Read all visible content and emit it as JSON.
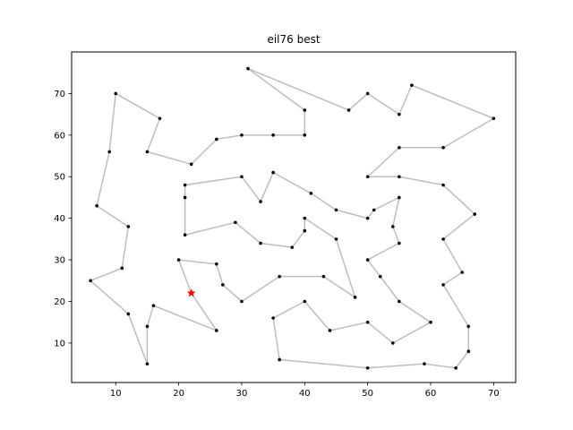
{
  "chart_data": {
    "type": "line",
    "title": "eil76 best",
    "xlabel": "",
    "ylabel": "",
    "xlim": [
      3,
      73.5
    ],
    "ylim": [
      0.5,
      80
    ],
    "xticks": [
      10,
      20,
      30,
      40,
      50,
      60,
      70
    ],
    "yticks": [
      10,
      20,
      30,
      40,
      50,
      60,
      70
    ],
    "grid": false,
    "colors": {
      "route": "#bdbdbd",
      "city": "#000000",
      "start": "#ff0000"
    },
    "start": {
      "x": 22,
      "y": 22
    },
    "route": [
      [
        22,
        22
      ],
      [
        26,
        13
      ],
      [
        16,
        19
      ],
      [
        15,
        14
      ],
      [
        15,
        5
      ],
      [
        12,
        17
      ],
      [
        6,
        25
      ],
      [
        11,
        28
      ],
      [
        12,
        38
      ],
      [
        7,
        43
      ],
      [
        9,
        56
      ],
      [
        10,
        70
      ],
      [
        17,
        64
      ],
      [
        15,
        56
      ],
      [
        22,
        53
      ],
      [
        26,
        59
      ],
      [
        30,
        60
      ],
      [
        35,
        60
      ],
      [
        40,
        60
      ],
      [
        40,
        66
      ],
      [
        31,
        76
      ],
      [
        47,
        66
      ],
      [
        50,
        70
      ],
      [
        55,
        65
      ],
      [
        57,
        72
      ],
      [
        70,
        64
      ],
      [
        62,
        57
      ],
      [
        55,
        57
      ],
      [
        50,
        50
      ],
      [
        55,
        50
      ],
      [
        62,
        48
      ],
      [
        67,
        41
      ],
      [
        62,
        35
      ],
      [
        65,
        27
      ],
      [
        62,
        24
      ],
      [
        66,
        14
      ],
      [
        66,
        8
      ],
      [
        64,
        4
      ],
      [
        59,
        5
      ],
      [
        50,
        4
      ],
      [
        36,
        6
      ],
      [
        35,
        16
      ],
      [
        40,
        20
      ],
      [
        44,
        13
      ],
      [
        50,
        15
      ],
      [
        54,
        10
      ],
      [
        60,
        15
      ],
      [
        55,
        20
      ],
      [
        52,
        26
      ],
      [
        50,
        30
      ],
      [
        55,
        34
      ],
      [
        54,
        38
      ],
      [
        55,
        45
      ],
      [
        51,
        42
      ],
      [
        50,
        40
      ],
      [
        45,
        42
      ],
      [
        41,
        46
      ],
      [
        35,
        51
      ],
      [
        33,
        44
      ],
      [
        30,
        50
      ],
      [
        21,
        48
      ],
      [
        21,
        45
      ],
      [
        21,
        36
      ],
      [
        29,
        39
      ],
      [
        33,
        34
      ],
      [
        38,
        33
      ],
      [
        40,
        37
      ],
      [
        40,
        40
      ],
      [
        45,
        35
      ],
      [
        48,
        21
      ],
      [
        43,
        26
      ],
      [
        36,
        26
      ],
      [
        30,
        20
      ],
      [
        27,
        24
      ],
      [
        26,
        29
      ],
      [
        20,
        30
      ],
      [
        22,
        22
      ]
    ]
  }
}
